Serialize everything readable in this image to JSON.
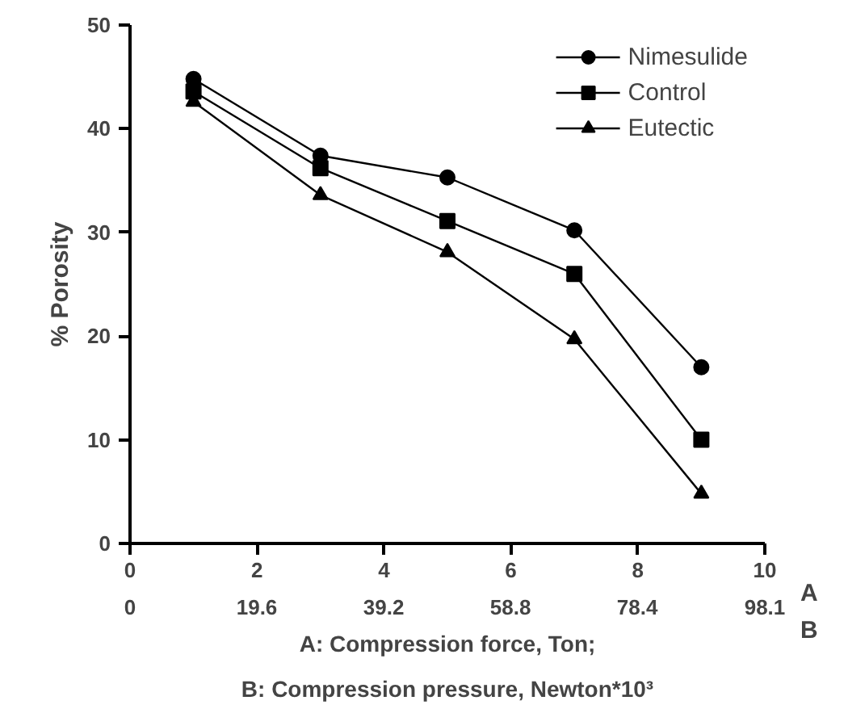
{
  "chart_data": {
    "type": "line",
    "x": [
      1,
      3,
      5,
      7,
      9
    ],
    "series": [
      {
        "name": "Nimesulide",
        "color": "#000000",
        "marker": "circle",
        "values": [
          44.8,
          37.4,
          35.3,
          30.2,
          17
        ]
      },
      {
        "name": "Control",
        "color": "#000000",
        "marker": "square",
        "values": [
          43.6,
          36.2,
          31.1,
          26,
          10
        ]
      },
      {
        "name": "Eutectic",
        "color": "#000000",
        "marker": "triangle",
        "values": [
          42.6,
          33.6,
          28.1,
          19.7,
          4.8
        ]
      }
    ],
    "ylabel": "% Porosity",
    "xlabel": "A: Compression force, Ton;",
    "x2label": "B: Compression pressure, Newton*10³",
    "xlim": [
      0,
      10
    ],
    "xticks": [
      0,
      2,
      4,
      6,
      8,
      10
    ],
    "x2lim": [
      0,
      98.1
    ],
    "x2ticks": [
      0,
      19.6,
      39.2,
      58.8,
      78.4,
      98.1
    ],
    "ylim": [
      0,
      50
    ],
    "yticks": [
      0,
      10,
      20,
      30,
      40,
      50
    ],
    "annotations": [
      "A",
      "B"
    ],
    "grid": false,
    "legend": "top right",
    "line_style": "solid"
  }
}
